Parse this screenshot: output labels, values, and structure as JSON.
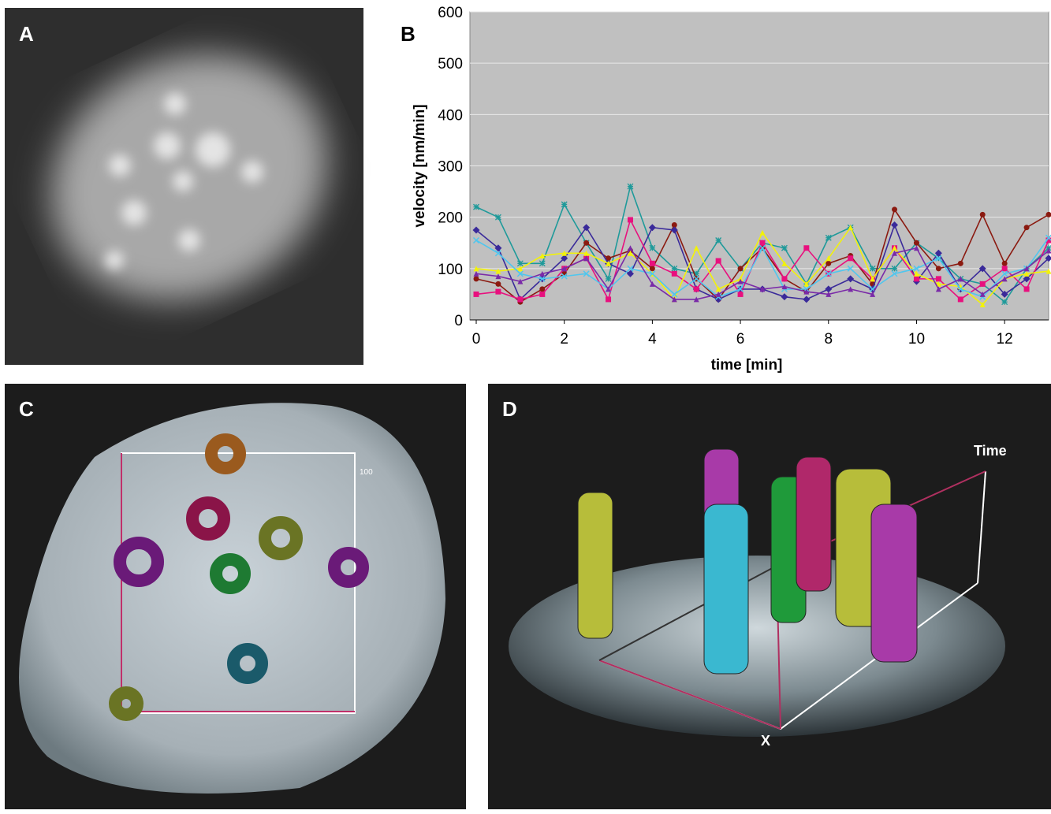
{
  "panel_labels": [
    "A",
    "B",
    "C",
    "D"
  ],
  "panel_c": {
    "scale_label": "100"
  },
  "panel_d": {
    "axis_labels": [
      "Time",
      "X"
    ]
  },
  "chart_data": {
    "type": "line",
    "xlabel": "time [min]",
    "ylabel": "velocity [nm/min]",
    "x": [
      0,
      0.5,
      1,
      1.5,
      2,
      2.5,
      3,
      3.5,
      4,
      4.5,
      5,
      5.5,
      6,
      6.5,
      7,
      7.5,
      8,
      8.5,
      9,
      9.5,
      10,
      10.5,
      11,
      11.5,
      12,
      12.5,
      13
    ],
    "xlim": [
      0,
      13
    ],
    "xticks": [
      0,
      2,
      4,
      6,
      8,
      10,
      12
    ],
    "ylim": [
      0,
      600
    ],
    "yticks": [
      0,
      100,
      200,
      300,
      400,
      500,
      600
    ],
    "grid": true,
    "series": [
      {
        "color": "#1f9a9a",
        "marker": "star",
        "values": [
          220,
          200,
          110,
          110,
          225,
          150,
          80,
          260,
          140,
          100,
          90,
          155,
          100,
          150,
          140,
          70,
          160,
          180,
          100,
          100,
          150,
          120,
          80,
          70,
          35,
          100,
          140
        ]
      },
      {
        "color": "#8b1a10",
        "marker": "circle",
        "values": [
          80,
          70,
          35,
          60,
          90,
          150,
          120,
          135,
          100,
          185,
          80,
          40,
          100,
          140,
          80,
          55,
          110,
          125,
          70,
          215,
          150,
          100,
          110,
          205,
          110,
          180,
          205
        ]
      },
      {
        "color": "#3a2a9a",
        "marker": "diamond",
        "values": [
          175,
          140,
          40,
          80,
          120,
          180,
          110,
          90,
          180,
          175,
          60,
          40,
          60,
          60,
          45,
          40,
          60,
          80,
          60,
          185,
          75,
          130,
          60,
          100,
          50,
          80,
          120
        ]
      },
      {
        "color": "#e8107e",
        "marker": "square",
        "values": [
          50,
          55,
          40,
          50,
          100,
          120,
          40,
          195,
          110,
          90,
          60,
          115,
          50,
          150,
          80,
          140,
          90,
          120,
          80,
          140,
          80,
          80,
          40,
          70,
          100,
          60,
          155
        ]
      },
      {
        "color": "#f2f20a",
        "marker": "triangle",
        "values": [
          100,
          95,
          100,
          125,
          130,
          130,
          110,
          130,
          90,
          40,
          140,
          60,
          80,
          170,
          110,
          70,
          120,
          180,
          80,
          140,
          90,
          70,
          65,
          30,
          80,
          90,
          95
        ]
      },
      {
        "color": "#4fc6ee",
        "marker": "cross",
        "values": [
          155,
          130,
          90,
          80,
          85,
          90,
          60,
          100,
          90,
          50,
          80,
          45,
          60,
          140,
          60,
          60,
          90,
          100,
          60,
          90,
          100,
          120,
          60,
          45,
          90,
          100,
          160
        ]
      },
      {
        "color": "#7a2aa8",
        "marker": "triangle",
        "values": [
          90,
          85,
          75,
          90,
          100,
          120,
          60,
          140,
          70,
          40,
          40,
          50,
          75,
          60,
          65,
          55,
          50,
          60,
          50,
          130,
          140,
          60,
          80,
          50,
          80,
          100,
          135
        ]
      }
    ]
  }
}
